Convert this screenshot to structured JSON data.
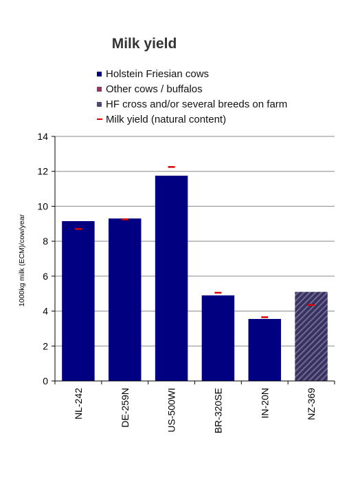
{
  "chart_data": {
    "type": "bar",
    "title": "Milk yield",
    "ylabel": "1000kg milk (ECM)/cow/year",
    "xlabel": "",
    "ylim": [
      0,
      14
    ],
    "yticks": [
      "0",
      "2",
      "4",
      "6",
      "8",
      "10",
      "12",
      "14"
    ],
    "grid": true,
    "legend_position": "top",
    "legend": [
      {
        "label": "Holstein Friesian cows",
        "kind": "box",
        "color": "#000080"
      },
      {
        "label": "Other cows / buffalos",
        "kind": "box",
        "color": "#993366"
      },
      {
        "label": "HF cross and/or several breeds on farm",
        "kind": "hatch",
        "color": "#333366"
      },
      {
        "label": "Milk yield (natural content)",
        "kind": "line",
        "color": "#dd0000"
      }
    ],
    "categories": [
      "NL-242",
      "DE-259N",
      "US-500WI",
      "BR-320SE",
      "IN-20N",
      "NZ-369"
    ],
    "series": [
      {
        "name": "Holstein Friesian cows",
        "color": "#000080",
        "values": [
          9.15,
          9.3,
          11.75,
          4.9,
          3.55,
          null
        ]
      },
      {
        "name": "HF cross and/or several breeds on farm",
        "color": "#333366",
        "values": [
          null,
          null,
          null,
          null,
          null,
          5.1
        ]
      },
      {
        "name": "Milk yield (natural content)",
        "type": "marker",
        "color": "#dd0000",
        "values": [
          8.7,
          9.25,
          12.25,
          5.05,
          3.65,
          4.35
        ]
      }
    ]
  }
}
